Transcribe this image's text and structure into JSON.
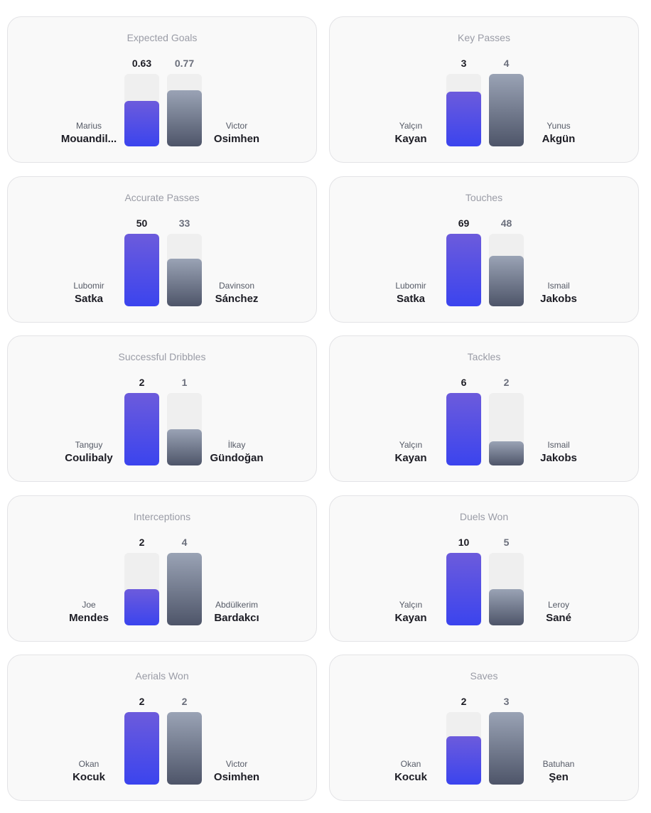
{
  "chart_data": [
    {
      "type": "bar",
      "title": "Expected Goals",
      "categories": [
        "Marius Mouandil...",
        "Victor Osimhen"
      ],
      "values": [
        0.63,
        0.77
      ],
      "labels": [
        "0.63",
        "0.77"
      ],
      "players": [
        {
          "first": "Marius",
          "last": "Mouandil..."
        },
        {
          "first": "Victor",
          "last": "Osimhen"
        }
      ],
      "max": 1.0
    },
    {
      "type": "bar",
      "title": "Key Passes",
      "categories": [
        "Yalçın Kayan",
        "Yunus Akgün"
      ],
      "values": [
        3,
        4
      ],
      "labels": [
        "3",
        "4"
      ],
      "players": [
        {
          "first": "Yalçın",
          "last": "Kayan"
        },
        {
          "first": "Yunus",
          "last": "Akgün"
        }
      ]
    },
    {
      "type": "bar",
      "title": "Accurate Passes",
      "categories": [
        "Lubomir Satka",
        "Davinson Sánchez"
      ],
      "values": [
        50,
        33
      ],
      "labels": [
        "50",
        "33"
      ],
      "players": [
        {
          "first": "Lubomir",
          "last": "Satka"
        },
        {
          "first": "Davinson",
          "last": "Sánchez"
        }
      ]
    },
    {
      "type": "bar",
      "title": "Touches",
      "categories": [
        "Lubomir Satka",
        "Ismail Jakobs"
      ],
      "values": [
        69,
        48
      ],
      "labels": [
        "69",
        "48"
      ],
      "players": [
        {
          "first": "Lubomir",
          "last": "Satka"
        },
        {
          "first": "Ismail",
          "last": "Jakobs"
        }
      ]
    },
    {
      "type": "bar",
      "title": "Successful Dribbles",
      "categories": [
        "Tanguy Coulibaly",
        "İlkay Gündoğan"
      ],
      "values": [
        2,
        1
      ],
      "labels": [
        "2",
        "1"
      ],
      "players": [
        {
          "first": "Tanguy",
          "last": "Coulibaly"
        },
        {
          "first": "İlkay",
          "last": "Gündoğan"
        }
      ]
    },
    {
      "type": "bar",
      "title": "Tackles",
      "categories": [
        "Yalçın Kayan",
        "Ismail Jakobs"
      ],
      "values": [
        6,
        2
      ],
      "labels": [
        "6",
        "2"
      ],
      "players": [
        {
          "first": "Yalçın",
          "last": "Kayan"
        },
        {
          "first": "Ismail",
          "last": "Jakobs"
        }
      ]
    },
    {
      "type": "bar",
      "title": "Interceptions",
      "categories": [
        "Joe Mendes",
        "Abdülkerim Bardakcı"
      ],
      "values": [
        2,
        4
      ],
      "labels": [
        "2",
        "4"
      ],
      "players": [
        {
          "first": "Joe",
          "last": "Mendes"
        },
        {
          "first": "Abdülkerim",
          "last": "Bardakcı"
        }
      ]
    },
    {
      "type": "bar",
      "title": "Duels Won",
      "categories": [
        "Yalçın Kayan",
        "Leroy Sané"
      ],
      "values": [
        10,
        5
      ],
      "labels": [
        "10",
        "5"
      ],
      "players": [
        {
          "first": "Yalçın",
          "last": "Kayan"
        },
        {
          "first": "Leroy",
          "last": "Sané"
        }
      ]
    },
    {
      "type": "bar",
      "title": "Aerials Won",
      "categories": [
        "Okan Kocuk",
        "Victor Osimhen"
      ],
      "values": [
        2,
        2
      ],
      "labels": [
        "2",
        "2"
      ],
      "players": [
        {
          "first": "Okan",
          "last": "Kocuk"
        },
        {
          "first": "Victor",
          "last": "Osimhen"
        }
      ]
    },
    {
      "type": "bar",
      "title": "Saves",
      "categories": [
        "Okan Kocuk",
        "Batuhan Şen"
      ],
      "values": [
        2,
        3
      ],
      "labels": [
        "2",
        "3"
      ],
      "players": [
        {
          "first": "Okan",
          "last": "Kocuk"
        },
        {
          "first": "Batuhan",
          "last": "Şen"
        }
      ]
    }
  ],
  "colors": {
    "player_a_top": "#6c5bdc",
    "player_a_bottom": "#3b44ee",
    "player_b_top": "#9aa3b5",
    "player_b_bottom": "#4e5569",
    "track": "#efefef"
  }
}
